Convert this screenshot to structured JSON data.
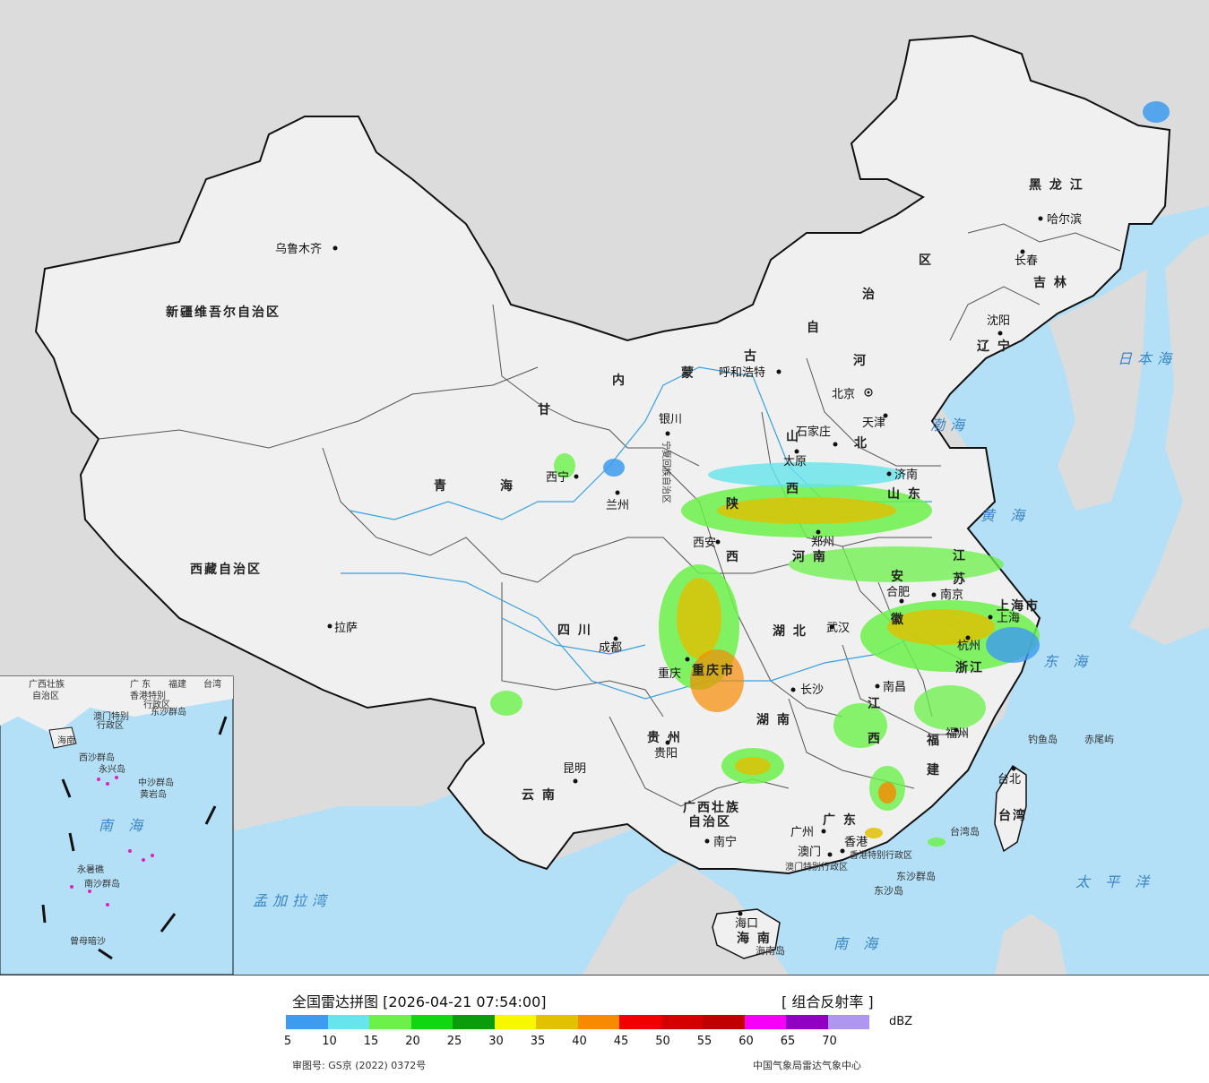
{
  "map_title": "全国雷达拼图 [2026-04-21 07:54:00]",
  "product": "[ 组合反射率 ]",
  "unit": "dBZ",
  "approval_no": "审图号: GS京 (2022) 0372号",
  "agency": "中国气象局雷达气象中心",
  "colors": {
    "ocean": "#b3e0f7",
    "land_china": "#f0f0f0",
    "land_other": "#dcdcdc",
    "border": "#111111",
    "rivers": "#3aa0e0"
  },
  "legend": {
    "thresholds": [
      "5",
      "10",
      "15",
      "20",
      "25",
      "30",
      "35",
      "40",
      "45",
      "50",
      "55",
      "60",
      "65",
      "70"
    ],
    "colors": [
      "#3d9bf0",
      "#67e5ec",
      "#6bf14a",
      "#11d711",
      "#0a9c0a",
      "#f7f700",
      "#e2c100",
      "#f78a00",
      "#f00000",
      "#d40000",
      "#c00000",
      "#f700f7",
      "#9100c2",
      "#af96f0"
    ]
  },
  "provinces": [
    {
      "id": "xinjiang",
      "name": "新疆维吾尔自治区"
    },
    {
      "id": "xizang",
      "name": "西藏自治区"
    },
    {
      "id": "qinghai1",
      "name": "青"
    },
    {
      "id": "qinghai2",
      "name": "海"
    },
    {
      "id": "gansu",
      "name": "甘"
    },
    {
      "id": "neimenggu1",
      "name": "内"
    },
    {
      "id": "neimenggu2",
      "name": "蒙"
    },
    {
      "id": "neimenggu3",
      "name": "古"
    },
    {
      "id": "neimenggu4",
      "name": "自"
    },
    {
      "id": "neimenggu5",
      "name": "治"
    },
    {
      "id": "neimenggu6",
      "name": "区"
    },
    {
      "id": "heilongjiang",
      "name": "黑 龙 江"
    },
    {
      "id": "jilin",
      "name": "吉 林"
    },
    {
      "id": "liaoning",
      "name": "辽 宁"
    },
    {
      "id": "hebei1",
      "name": "河"
    },
    {
      "id": "hebei2",
      "name": "北"
    },
    {
      "id": "shanxi1",
      "name": "山"
    },
    {
      "id": "shanxi2",
      "name": "西"
    },
    {
      "id": "shandong",
      "name": "山 东"
    },
    {
      "id": "shaanxi1",
      "name": "陕"
    },
    {
      "id": "shaanxi2",
      "name": "西"
    },
    {
      "id": "henan",
      "name": "河 南"
    },
    {
      "id": "jiangsu1",
      "name": "江"
    },
    {
      "id": "jiangsu2",
      "name": "苏"
    },
    {
      "id": "anhui1",
      "name": "安"
    },
    {
      "id": "anhui2",
      "name": "徽"
    },
    {
      "id": "hubei",
      "name": "湖 北"
    },
    {
      "id": "hunan",
      "name": "湖 南"
    },
    {
      "id": "jiangxi1",
      "name": "江"
    },
    {
      "id": "jiangxi2",
      "name": "西"
    },
    {
      "id": "zhejiang",
      "name": "浙江"
    },
    {
      "id": "fujian1",
      "name": "福"
    },
    {
      "id": "fujian2",
      "name": "建"
    },
    {
      "id": "sichuan",
      "name": "四 川"
    },
    {
      "id": "chongqing",
      "name": "重庆市"
    },
    {
      "id": "guizhou",
      "name": "贵 州"
    },
    {
      "id": "yunnan",
      "name": "云 南"
    },
    {
      "id": "guangxi1",
      "name": "广西壮族"
    },
    {
      "id": "guangxi2",
      "name": "自治区"
    },
    {
      "id": "guangdong",
      "name": "广 东"
    },
    {
      "id": "hainan",
      "name": "海 南"
    },
    {
      "id": "taiwan",
      "name": "台湾"
    },
    {
      "id": "shanghai",
      "name": "上海市"
    },
    {
      "id": "ningxia",
      "name": "宁夏回族自治区"
    },
    {
      "id": "hk",
      "name": "香港特别行政区"
    },
    {
      "id": "macau",
      "name": "澳门特别行政区"
    }
  ],
  "cities": [
    {
      "id": "urumqi",
      "name": "乌鲁木齐"
    },
    {
      "id": "lhasa",
      "name": "拉萨"
    },
    {
      "id": "xining",
      "name": "西宁"
    },
    {
      "id": "lanzhou",
      "name": "兰州"
    },
    {
      "id": "yinchuan",
      "name": "银川"
    },
    {
      "id": "hohhot",
      "name": "呼和浩特"
    },
    {
      "id": "beijing",
      "name": "北京"
    },
    {
      "id": "tianjin",
      "name": "天津"
    },
    {
      "id": "shijiazhuang",
      "name": "石家庄"
    },
    {
      "id": "taiyuan",
      "name": "太原"
    },
    {
      "id": "jinan",
      "name": "济南"
    },
    {
      "id": "xian",
      "name": "西安"
    },
    {
      "id": "zhengzhou",
      "name": "郑州"
    },
    {
      "id": "hefei",
      "name": "合肥"
    },
    {
      "id": "nanjing",
      "name": "南京"
    },
    {
      "id": "shanghai_c",
      "name": "上海"
    },
    {
      "id": "hangzhou",
      "name": "杭州"
    },
    {
      "id": "wuhan",
      "name": "武汉"
    },
    {
      "id": "changsha",
      "name": "长沙"
    },
    {
      "id": "nanchang",
      "name": "南昌"
    },
    {
      "id": "fuzhou",
      "name": "福州"
    },
    {
      "id": "taipei",
      "name": "台北"
    },
    {
      "id": "chengdu",
      "name": "成都"
    },
    {
      "id": "chongqing_c",
      "name": "重庆"
    },
    {
      "id": "guiyang",
      "name": "贵阳"
    },
    {
      "id": "kunming",
      "name": "昆明"
    },
    {
      "id": "nanning",
      "name": "南宁"
    },
    {
      "id": "guangzhou",
      "name": "广州"
    },
    {
      "id": "macau_c",
      "name": "澳门"
    },
    {
      "id": "hongkong_c",
      "name": "香港"
    },
    {
      "id": "haikou",
      "name": "海口"
    },
    {
      "id": "shenyang",
      "name": "沈阳"
    },
    {
      "id": "changchun",
      "name": "长春"
    },
    {
      "id": "harbin",
      "name": "哈尔滨"
    }
  ],
  "seas": [
    {
      "id": "bohai",
      "name": "渤海"
    },
    {
      "id": "huanghai",
      "name": "黄 海"
    },
    {
      "id": "donghai",
      "name": "东 海"
    },
    {
      "id": "nanhai",
      "name": "南 海"
    },
    {
      "id": "taipingyang",
      "name": "太 平 洋"
    },
    {
      "id": "ribenhai",
      "name": "日本海"
    },
    {
      "id": "mengjialawan",
      "name": "孟加拉湾"
    }
  ],
  "islands": [
    {
      "id": "diaoyu",
      "name": "钓鱼岛"
    },
    {
      "id": "chiwei",
      "name": "赤尾屿"
    },
    {
      "id": "dongsha_qd",
      "name": "东沙群岛"
    },
    {
      "id": "dongsha_d",
      "name": "东沙岛"
    },
    {
      "id": "hainan_d",
      "name": "海南岛"
    },
    {
      "id": "taiwan_d",
      "name": "台湾岛"
    }
  ],
  "inset": {
    "labels": {
      "guangxi": "广西壮族",
      "zzq": "自治区",
      "guangdong": "广 东",
      "fujian": "福建",
      "taiwan": "台湾",
      "hk": "香港特别",
      "hk2": "行政区",
      "macau": "澳门特别",
      "macau2": "行政区",
      "dongsha": "东沙群岛",
      "hainan": "海南",
      "xisha": "西沙群岛",
      "yongxing": "永兴岛",
      "zhongsha": "中沙群岛",
      "huangyan": "黄岩岛",
      "nanhai": "南 海",
      "nansha": "南沙群岛",
      "yongshu": "永暑礁",
      "zengmu": "曾母暗沙"
    }
  }
}
